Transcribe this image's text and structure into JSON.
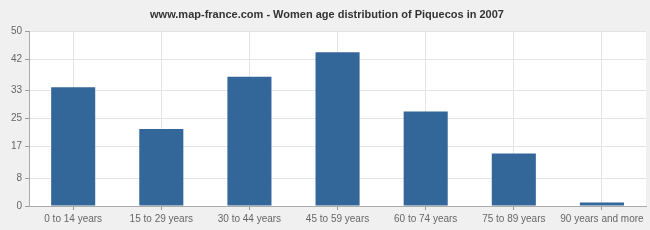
{
  "chart_data": {
    "type": "bar",
    "title": "www.map-france.com - Women age distribution of Piquecos in 2007",
    "categories": [
      "0 to 14 years",
      "15 to 29 years",
      "30 to 44 years",
      "45 to 59 years",
      "60 to 74 years",
      "75 to 89 years",
      "90 years and more"
    ],
    "values": [
      34,
      22,
      37,
      44,
      27,
      15,
      1
    ],
    "color": "#336699",
    "ylim": [
      0,
      50
    ],
    "yticks": [
      0,
      8,
      17,
      25,
      33,
      42,
      50
    ],
    "grid": true
  }
}
